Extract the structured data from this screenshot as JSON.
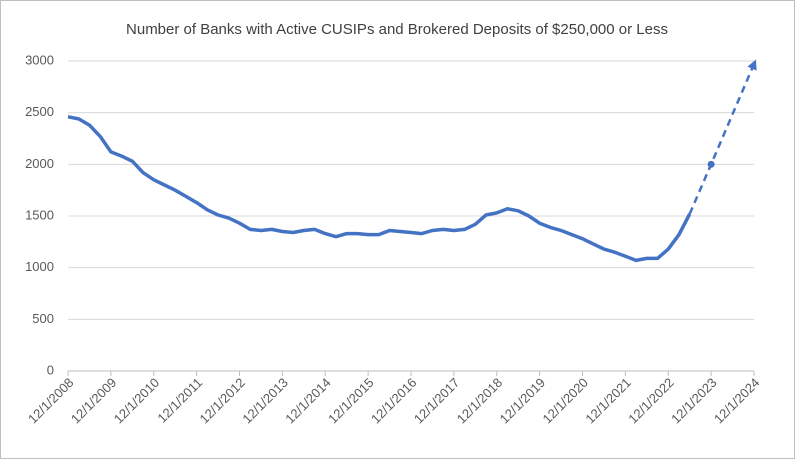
{
  "chart_data": {
    "type": "line",
    "title": "Number of Banks with Active CUSIPs and Brokered Deposits of $250,000 or Less",
    "x": [
      "12/1/2008",
      "3/1/2009",
      "6/1/2009",
      "9/1/2009",
      "12/1/2009",
      "3/1/2010",
      "6/1/2010",
      "9/1/2010",
      "12/1/2010",
      "3/1/2011",
      "6/1/2011",
      "9/1/2011",
      "12/1/2011",
      "3/1/2012",
      "6/1/2012",
      "9/1/2012",
      "12/1/2012",
      "3/1/2013",
      "6/1/2013",
      "9/1/2013",
      "12/1/2013",
      "3/1/2014",
      "6/1/2014",
      "9/1/2014",
      "12/1/2014",
      "3/1/2015",
      "6/1/2015",
      "9/1/2015",
      "12/1/2015",
      "3/1/2016",
      "6/1/2016",
      "9/1/2016",
      "12/1/2016",
      "3/1/2017",
      "6/1/2017",
      "9/1/2017",
      "12/1/2017",
      "3/1/2018",
      "6/1/2018",
      "9/1/2018",
      "12/1/2018",
      "3/1/2019",
      "6/1/2019",
      "9/1/2019",
      "12/1/2019",
      "3/1/2020",
      "6/1/2020",
      "9/1/2020",
      "12/1/2020",
      "3/1/2021",
      "6/1/2021",
      "9/1/2021",
      "12/1/2021",
      "3/1/2022",
      "6/1/2022",
      "9/1/2022",
      "12/1/2022",
      "3/1/2023",
      "6/1/2023"
    ],
    "series": [
      {
        "color": "#4472c4",
        "dashed": false,
        "values": [
          2460,
          2440,
          2380,
          2270,
          2120,
          2080,
          2030,
          1920,
          1850,
          1800,
          1750,
          1690,
          1630,
          1560,
          1510,
          1480,
          1430,
          1370,
          1360,
          1370,
          1350,
          1340,
          1360,
          1370,
          1330,
          1300,
          1330,
          1330,
          1320,
          1320,
          1360,
          1350,
          1340,
          1330,
          1360,
          1370,
          1360,
          1370,
          1420,
          1510,
          1530,
          1570,
          1550,
          1500,
          1430,
          1390,
          1360,
          1320,
          1280,
          1230,
          1180,
          1150,
          1110,
          1070,
          1090,
          1090,
          1180,
          1320,
          1520
        ]
      },
      {
        "color": "#4472c4",
        "dashed": true,
        "x": [
          "6/1/2023",
          "12/1/2023",
          "12/1/2024"
        ],
        "values": [
          1520,
          2000,
          2970
        ]
      }
    ],
    "xlim": [
      "12/1/2008",
      "12/1/2024"
    ],
    "xticks": [
      "12/1/2008",
      "12/1/2009",
      "12/1/2010",
      "12/1/2011",
      "12/1/2012",
      "12/1/2013",
      "12/1/2014",
      "12/1/2015",
      "12/1/2016",
      "12/1/2017",
      "12/1/2018",
      "12/1/2019",
      "12/1/2020",
      "12/1/2021",
      "12/1/2022",
      "12/1/2023",
      "12/1/2024"
    ],
    "ylim": [
      0,
      3000
    ],
    "yticks": [
      0,
      500,
      1000,
      1500,
      2000,
      2500,
      3000
    ],
    "grid": true
  }
}
